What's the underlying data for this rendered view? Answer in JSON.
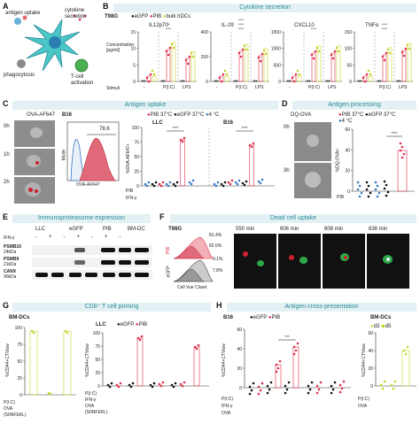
{
  "panels": {
    "A": {
      "letter": "A",
      "labels": {
        "antigen_uptake": "antigen uptake",
        "cytokine_secretion": "cytokine\nsecretion",
        "phagocytosis": "phagocytosis",
        "tcell_activation": "T-cell\nactivation"
      }
    },
    "B": {
      "letter": "B",
      "banner": "Cytokine secretion",
      "cell_line": "T98G",
      "legend": {
        "egfp": "eGFP",
        "pib": "PIB",
        "bulk": "bulk hDCs"
      },
      "ylabel": "Concentration\n[pg/ml]",
      "stimuli_label": "Stimuli",
      "subplots": [
        {
          "title": "IL12p70",
          "yticks": [
            "15",
            "10",
            "5",
            "0"
          ],
          "stim": [
            "-",
            "P(I:C)",
            "LPS"
          ],
          "sig": [
            "****",
            "**"
          ]
        },
        {
          "title": "IL-29",
          "yticks": [
            "400",
            "200",
            "0"
          ],
          "stim": [
            "-",
            "P(I:C)",
            "LPS"
          ],
          "sig": [
            "****",
            "****",
            "****"
          ]
        },
        {
          "title": "CXCL10",
          "yticks": [
            "1500",
            "1000",
            "500",
            "0"
          ],
          "stim": [
            "-",
            "P(I:C)",
            "LPS"
          ],
          "sig": [
            "****"
          ]
        },
        {
          "title": "TNFα",
          "yticks": [
            "150",
            "100",
            "50",
            "0"
          ],
          "stim": [
            "-",
            "P(I:C)",
            "LPS"
          ],
          "sig": [
            "****",
            "****"
          ]
        }
      ]
    },
    "C": {
      "letter": "C",
      "banner": "Antigen uptake",
      "probe": "OVA-AF647",
      "cell_line": "B16",
      "times": [
        "0h",
        "1h",
        "2h"
      ],
      "hist_value": "78.6",
      "hist_ylabel": "Mode",
      "hist_xlabel": "OVA-AF647",
      "legend": {
        "pib37": "PIB 37°C",
        "egfp37": "eGFP 37°C",
        "cold": "4 °C"
      },
      "groups": [
        "LLC",
        "B16"
      ],
      "ylabel": "%OVA-AF647+",
      "yticks": [
        "100",
        "75",
        "50",
        "25",
        "0"
      ],
      "row_labels": [
        "PIB",
        "IFN-γ"
      ],
      "sig": [
        "****",
        "****"
      ]
    },
    "D": {
      "letter": "D",
      "banner": "Antigen processing",
      "probe": "DQ-OVA",
      "times": [
        "0h",
        "3h"
      ],
      "ylabel": "%DQ-OVA+",
      "yticks": [
        "60",
        "40",
        "20",
        "0"
      ],
      "row_label": "PIB",
      "sig": "****"
    },
    "E": {
      "letter": "E",
      "banner": "Immunoproteasome expression",
      "lanes": [
        "LLC",
        "eGFP",
        "PIB",
        "BM-DC"
      ],
      "ifn_label": "IFN-γ",
      "markers": [
        {
          "name": "PSMB10",
          "kda": "24kDa"
        },
        {
          "name": "PSMB9",
          "kda": "21kDa"
        },
        {
          "name": "CANX",
          "kda": "90kDa"
        }
      ]
    },
    "F": {
      "letter": "F",
      "banner": "Dead cell uptake",
      "cell_line": "T98G",
      "percentages": [
        "81.4%",
        "82.6%",
        "9.1%",
        "7.8%"
      ],
      "rows": [
        "PIB",
        "eGFP"
      ],
      "xlabel": "Cell Vue Claret",
      "timepoints": [
        "550 min",
        "606 min",
        "808 min",
        "838 min"
      ]
    },
    "G": {
      "letter": "G",
      "banner": "CD8⁺ T cell priming",
      "left_title": "BM-DCs",
      "right_title": "LLC",
      "legend": {
        "egfp": "eGFP",
        "pib": "PIB"
      },
      "ylabel": "%CD44+CTVlow",
      "yticks": [
        "100",
        "75",
        "50",
        "25",
        "0"
      ],
      "row_labels": [
        "P(I:C)",
        "OVA",
        "(SIINFEKL)"
      ],
      "right_rows": [
        "P(I:C)",
        "IFN-γ",
        "OVA",
        "(SIINFEKL)"
      ]
    },
    "H": {
      "letter": "H",
      "banner": "Antigen cross-presentation",
      "left_title": "B16",
      "right_title": "BM-DCs",
      "legend": {
        "egfp": "eGFP",
        "pib": "PIB",
        "d3": "d3",
        "d5": "d5"
      },
      "ylabel": "%CD44+CTVlow",
      "yticks": [
        "60",
        "40",
        "20",
        "0"
      ],
      "sig": "***",
      "row_labels": [
        "P(I:C)",
        "IFN-γ",
        "OVA"
      ],
      "right_rows": [
        "P(I:C)",
        "OVA"
      ]
    }
  },
  "colors": {
    "egfp": "#111111",
    "pib": "#e0304a",
    "bulk": "#c5d42a",
    "teal": "#2a8a9a",
    "blue": "#3a78c8",
    "banner_bg": "#e3f1f4"
  }
}
